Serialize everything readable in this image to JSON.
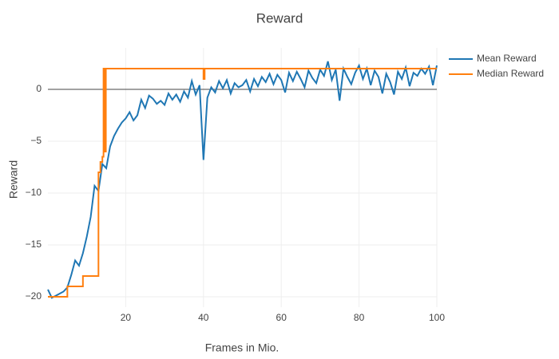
{
  "chart_data": {
    "type": "line",
    "title": "Reward",
    "x_label": "Frames in Mio.",
    "y_label": "Reward",
    "xlim": [
      0,
      100
    ],
    "ylim": [
      -21,
      4
    ],
    "xticks": [
      20,
      40,
      60,
      80,
      100
    ],
    "yticks": [
      {
        "value": -20,
        "label": "−20"
      },
      {
        "value": -15,
        "label": "−15"
      },
      {
        "value": -10,
        "label": "−10"
      },
      {
        "value": -5,
        "label": "−5"
      },
      0
    ],
    "grid": true,
    "legend": "top-right",
    "series": [
      {
        "name": "Mean Reward",
        "color": "#1f77b4",
        "x": [
          0,
          1,
          2,
          3,
          4,
          5,
          6,
          7,
          8,
          9,
          10,
          11,
          12,
          13,
          14,
          15,
          16,
          17,
          18,
          19,
          20,
          21,
          22,
          23,
          24,
          25,
          26,
          27,
          28,
          29,
          30,
          31,
          32,
          33,
          34,
          35,
          36,
          37,
          38,
          39,
          40,
          41,
          42,
          43,
          44,
          45,
          46,
          47,
          48,
          49,
          50,
          51,
          52,
          53,
          54,
          55,
          56,
          57,
          58,
          59,
          60,
          61,
          62,
          63,
          64,
          65,
          66,
          67,
          68,
          69,
          70,
          71,
          72,
          73,
          74,
          75,
          76,
          77,
          78,
          79,
          80,
          81,
          82,
          83,
          84,
          85,
          86,
          87,
          88,
          89,
          90,
          91,
          92,
          93,
          94,
          95,
          96,
          97,
          98,
          99,
          100
        ],
        "values": [
          -19.3,
          -20.1,
          -19.9,
          -19.7,
          -19.5,
          -19.1,
          -17.9,
          -16.5,
          -17.0,
          -15.8,
          -14.2,
          -12.3,
          -9.3,
          -9.8,
          -7.2,
          -7.6,
          -5.5,
          -4.5,
          -3.8,
          -3.2,
          -2.8,
          -2.2,
          -3.0,
          -2.5,
          -1.0,
          -1.8,
          -0.6,
          -0.9,
          -1.4,
          -1.1,
          -1.5,
          -0.4,
          -1.0,
          -0.5,
          -1.2,
          -0.2,
          -0.8,
          0.8,
          -0.5,
          0.4,
          -6.8,
          -0.8,
          0.2,
          -0.3,
          0.8,
          0.1,
          0.9,
          -0.4,
          0.6,
          0.2,
          0.4,
          0.9,
          -0.2,
          1.0,
          0.3,
          1.2,
          0.7,
          1.5,
          0.5,
          1.4,
          0.9,
          -0.3,
          1.6,
          0.8,
          1.7,
          1.0,
          0.2,
          1.8,
          1.1,
          0.6,
          1.9,
          1.3,
          2.7,
          0.9,
          1.9,
          -1.1,
          2.0,
          1.2,
          0.5,
          1.6,
          2.3,
          1.0,
          2.0,
          0.4,
          1.8,
          1.2,
          -0.4,
          1.5,
          0.7,
          -0.5,
          1.7,
          1.0,
          2.1,
          0.3,
          1.6,
          1.3,
          2.0,
          1.5,
          2.2,
          0.4,
          2.3
        ]
      },
      {
        "name": "Median Reward",
        "color": "#ff7f0e",
        "x": [
          0,
          5,
          5,
          9,
          9,
          13,
          13,
          13.5,
          13.5,
          14,
          14,
          14.3,
          14.3,
          14.6,
          14.6,
          14.9,
          14.9,
          15.1,
          15.1,
          40,
          40,
          40.3,
          40.3,
          100
        ],
        "values": [
          -20,
          -20,
          -19,
          -19,
          -18,
          -18,
          -8,
          -8,
          -7,
          -7,
          -6.5,
          -6.5,
          2,
          2,
          -6,
          -6,
          2,
          2,
          2,
          2,
          1,
          1,
          2,
          2
        ]
      }
    ]
  }
}
